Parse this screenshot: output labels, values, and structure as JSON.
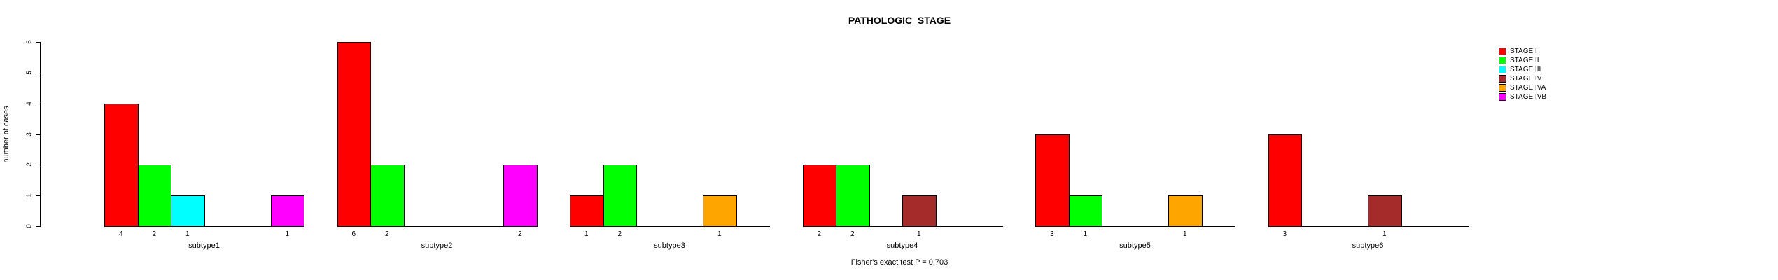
{
  "window": {
    "background_color": "#FFFFFF",
    "text_color": "#000000",
    "axis_color": "#000000"
  },
  "chart_data": {
    "type": "bar",
    "title": "PATHOLOGIC_STAGE",
    "xlabel": "",
    "ylabel": "number of cases",
    "ylim": [
      0,
      6
    ],
    "yticks": [
      0,
      1,
      2,
      3,
      4,
      5,
      6
    ],
    "grid": false,
    "legend_position": "top-right",
    "annotation": "Fisher's exact test P = 0.703",
    "categories": [
      "subtype1",
      "subtype2",
      "subtype3",
      "subtype4",
      "subtype5",
      "subtype6"
    ],
    "series": [
      {
        "name": "STAGE I",
        "color": "#FF0000",
        "values": [
          4,
          6,
          1,
          2,
          3,
          3
        ]
      },
      {
        "name": "STAGE II",
        "color": "#00FF00",
        "values": [
          2,
          2,
          2,
          2,
          1,
          0
        ]
      },
      {
        "name": "STAGE III",
        "color": "#00FFFF",
        "values": [
          1,
          0,
          0,
          0,
          0,
          0
        ]
      },
      {
        "name": "STAGE IV",
        "color": "#A52A2A",
        "values": [
          0,
          0,
          0,
          1,
          0,
          1
        ]
      },
      {
        "name": "STAGE IVA",
        "color": "#FFA500",
        "values": [
          0,
          0,
          1,
          0,
          1,
          0
        ]
      },
      {
        "name": "STAGE IVB",
        "color": "#FF00FF",
        "values": [
          1,
          2,
          0,
          0,
          0,
          0
        ]
      }
    ],
    "bar_value_labels": "value shown under each nonzero bar"
  }
}
